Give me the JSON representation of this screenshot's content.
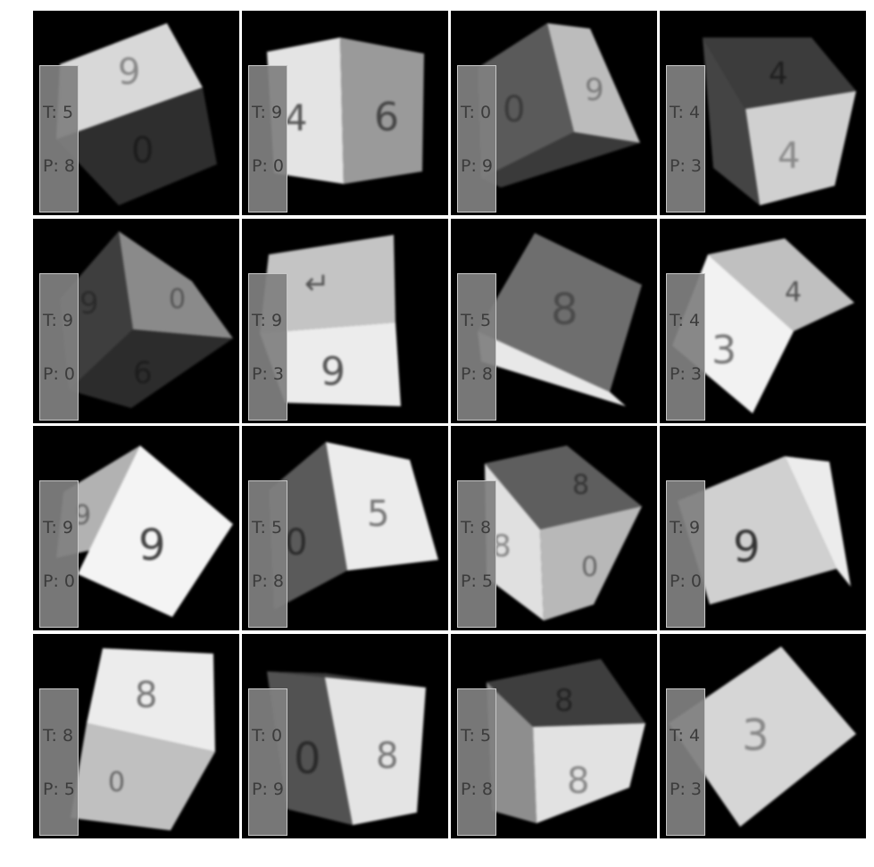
{
  "colors": {
    "background": "#000000",
    "separator": "#ffffff",
    "label_box": "#808080",
    "label_text": "#3c3c3c"
  },
  "panels": [
    {
      "true_label": "T: 5",
      "predicted_label": "P: 8"
    },
    {
      "true_label": "T: 9",
      "predicted_label": "P: 0"
    },
    {
      "true_label": "T: 0",
      "predicted_label": "P: 9"
    },
    {
      "true_label": "T: 4",
      "predicted_label": "P: 3"
    },
    {
      "true_label": "T: 9",
      "predicted_label": "P: 0"
    },
    {
      "true_label": "T: 9",
      "predicted_label": "P: 3"
    },
    {
      "true_label": "T: 5",
      "predicted_label": "P: 8"
    },
    {
      "true_label": "T: 4",
      "predicted_label": "P: 3"
    },
    {
      "true_label": "T: 9",
      "predicted_label": "P: 0"
    },
    {
      "true_label": "T: 5",
      "predicted_label": "P: 8"
    },
    {
      "true_label": "T: 8",
      "predicted_label": "P: 5"
    },
    {
      "true_label": "T: 9",
      "predicted_label": "P: 0"
    },
    {
      "true_label": "T: 8",
      "predicted_label": "P: 5"
    },
    {
      "true_label": "T: 0",
      "predicted_label": "P: 9"
    },
    {
      "true_label": "T: 5",
      "predicted_label": "P: 8"
    },
    {
      "true_label": "T: 4",
      "predicted_label": "P: 3"
    }
  ]
}
